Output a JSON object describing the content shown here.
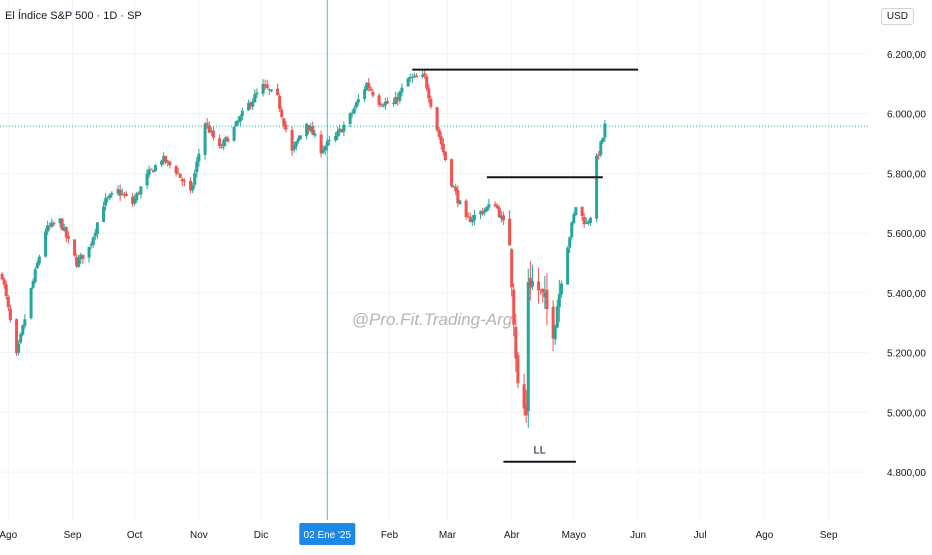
{
  "header": {
    "title": "El Índice S&P 500 · 1D · SP",
    "currency": "USD"
  },
  "watermark": "@Pro.Fit.Trading-Arg",
  "annotations": {
    "ll_label": "LL"
  },
  "colors": {
    "up": "#26a69a",
    "down": "#ef5350",
    "crosshair": "#4dd0e1",
    "last_price_line": "#26a69a",
    "level_line": "#131722",
    "grid": "#f0f3fa"
  },
  "chart_data": {
    "type": "candlestick",
    "title": "El Índice S&P 500 · 1D · SP",
    "y_ticks": [
      "6.200,00",
      "6.000,00",
      "5.800,00",
      "5.600,00",
      "5.400,00",
      "5.200,00",
      "5.000,00",
      "4.800,00"
    ],
    "y_tick_values": [
      6200,
      6000,
      5800,
      5600,
      5400,
      5200,
      5000,
      4800
    ],
    "ylim": [
      4640,
      6380
    ],
    "x_ticks": [
      "Ago",
      "Sep",
      "Oct",
      "Nov",
      "Dic",
      "Feb",
      "Mar",
      "Abr",
      "Mayo",
      "Jun",
      "Jul",
      "Ago",
      "Sep"
    ],
    "x_tick_dates": [
      "2024-08-01",
      "2024-09-01",
      "2024-10-01",
      "2024-11-01",
      "2024-12-01",
      "2025-02-01",
      "2025-03-01",
      "2025-04-01",
      "2025-05-01",
      "2025-06-01",
      "2025-07-01",
      "2025-08-01",
      "2025-09-01"
    ],
    "xlim": [
      "2024-07-28",
      "2025-09-20"
    ],
    "crosshair": {
      "date": "2025-01-02",
      "label": "02 Ene '25"
    },
    "last_price": 5958,
    "key_levels": [
      {
        "price": 6147,
        "from": "2025-02-12",
        "to": "2025-06-01"
      },
      {
        "price": 5787,
        "from": "2025-03-20",
        "to": "2025-05-15"
      },
      {
        "price": 4835,
        "from": "2025-03-28",
        "to": "2025-05-02"
      }
    ],
    "price_path": [
      [
        "2024-07-29",
        5460
      ],
      [
        "2024-08-05",
        5186
      ],
      [
        "2024-08-12",
        5410
      ],
      [
        "2024-08-19",
        5610
      ],
      [
        "2024-08-26",
        5640
      ],
      [
        "2024-09-03",
        5500
      ],
      [
        "2024-09-09",
        5550
      ],
      [
        "2024-09-16",
        5700
      ],
      [
        "2024-09-23",
        5740
      ],
      [
        "2024-09-30",
        5700
      ],
      [
        "2024-10-07",
        5790
      ],
      [
        "2024-10-14",
        5850
      ],
      [
        "2024-10-21",
        5810
      ],
      [
        "2024-10-28",
        5730
      ],
      [
        "2024-11-04",
        5970
      ],
      [
        "2024-11-11",
        5880
      ],
      [
        "2024-11-18",
        5950
      ],
      [
        "2024-11-25",
        6030
      ],
      [
        "2024-12-02",
        6090
      ],
      [
        "2024-12-09",
        6050
      ],
      [
        "2024-12-16",
        5870
      ],
      [
        "2024-12-23",
        5970
      ],
      [
        "2024-12-30",
        5880
      ],
      [
        "2025-01-06",
        5920
      ],
      [
        "2025-01-13",
        5990
      ],
      [
        "2025-01-21",
        6100
      ],
      [
        "2025-01-27",
        6040
      ],
      [
        "2025-02-03",
        6030
      ],
      [
        "2025-02-10",
        6115
      ],
      [
        "2025-02-18",
        6120
      ],
      [
        "2025-02-24",
        5950
      ],
      [
        "2025-03-03",
        5770
      ],
      [
        "2025-03-10",
        5640
      ],
      [
        "2025-03-17",
        5670
      ],
      [
        "2025-03-24",
        5700
      ],
      [
        "2025-03-31",
        5580
      ],
      [
        "2025-04-04",
        5080
      ],
      [
        "2025-04-08",
        4985
      ],
      [
        "2025-04-09",
        5450
      ],
      [
        "2025-04-14",
        5410
      ],
      [
        "2025-04-21",
        5290
      ],
      [
        "2025-04-28",
        5560
      ],
      [
        "2025-05-02",
        5690
      ],
      [
        "2025-05-07",
        5630
      ],
      [
        "2025-05-09",
        5660
      ],
      [
        "2025-05-12",
        5845
      ],
      [
        "2025-05-15",
        5920
      ],
      [
        "2025-05-16",
        5958
      ]
    ]
  }
}
